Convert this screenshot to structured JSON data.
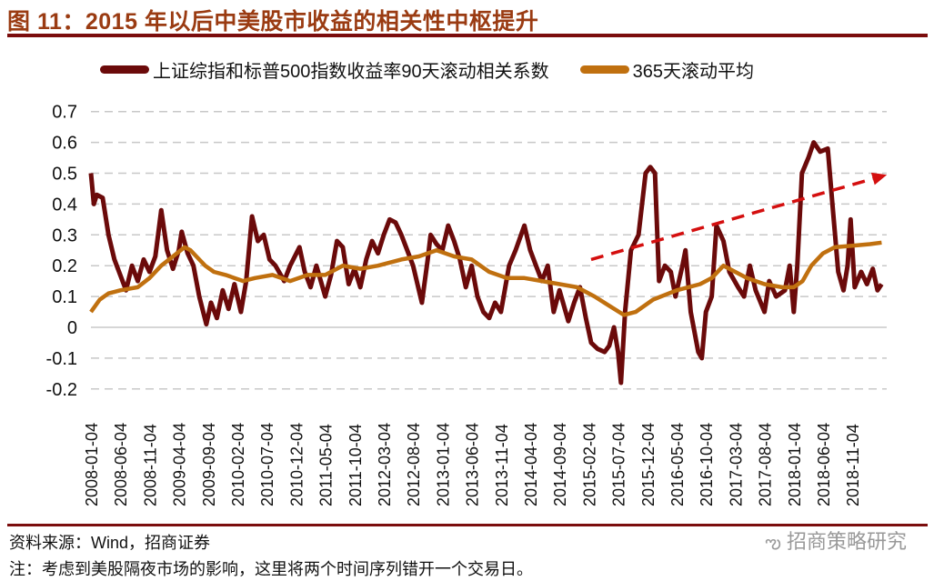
{
  "title": "图 11：2015 年以后中美股市收益的相关性中枢提升",
  "source": "资料来源：Wind，招商证券",
  "note": "注：考虑到美股隔夜市场的影响，这里将两个时间序列错开一个交易日。",
  "watermark": "招商策略研究",
  "colors": {
    "corr": "#6b0a0a",
    "ma": "#c0700f",
    "arrow": "#d40f0f",
    "title": "#9a3b12",
    "rule": "#7b0d0d"
  },
  "chart_data": {
    "type": "line",
    "title": "2015 年以后中美股市收益的相关性中枢提升",
    "x_unit": "months since 2008-01-04",
    "ylim": [
      -0.2,
      0.7
    ],
    "yticks": [
      "-0.2",
      "-0.1",
      "0",
      "0.1",
      "0.2",
      "0.3",
      "0.4",
      "0.5",
      "0.6",
      "0.7"
    ],
    "xticks": [
      "2008-01-04",
      "2008-06-04",
      "2008-11-04",
      "2009-04-04",
      "2009-09-04",
      "2010-02-04",
      "2010-07-04",
      "2010-12-04",
      "2011-05-04",
      "2011-10-04",
      "2012-03-04",
      "2012-08-04",
      "2013-01-04",
      "2013-06-04",
      "2013-11-04",
      "2014-04-04",
      "2014-09-04",
      "2015-02-04",
      "2015-07-04",
      "2015-12-04",
      "2016-05-04",
      "2016-10-04",
      "2017-03-04",
      "2017-08-04",
      "2018-01-04",
      "2018-06-04",
      "2018-11-04"
    ],
    "grid": "horizontal-dashed",
    "legend_position": "top",
    "series": [
      {
        "name": "上证综指和标普500指数收益率90天滚动相关系数",
        "points": [
          [
            0,
            0.5
          ],
          [
            0.5,
            0.4
          ],
          [
            1,
            0.43
          ],
          [
            2,
            0.42
          ],
          [
            3,
            0.3
          ],
          [
            4,
            0.22
          ],
          [
            5,
            0.17
          ],
          [
            6,
            0.12
          ],
          [
            7,
            0.2
          ],
          [
            8,
            0.15
          ],
          [
            9,
            0.22
          ],
          [
            10,
            0.18
          ],
          [
            11,
            0.23
          ],
          [
            12,
            0.38
          ],
          [
            13,
            0.25
          ],
          [
            14,
            0.19
          ],
          [
            15,
            0.25
          ],
          [
            15.5,
            0.31
          ],
          [
            16.5,
            0.24
          ],
          [
            17.5,
            0.2
          ],
          [
            18.5,
            0.1
          ],
          [
            19.7,
            0.01
          ],
          [
            20.5,
            0.08
          ],
          [
            21.5,
            0.03
          ],
          [
            22.5,
            0.12
          ],
          [
            23.5,
            0.06
          ],
          [
            24.5,
            0.14
          ],
          [
            25.6,
            0.05
          ],
          [
            26.5,
            0.15
          ],
          [
            27.5,
            0.36
          ],
          [
            28.5,
            0.28
          ],
          [
            29.5,
            0.3
          ],
          [
            30.5,
            0.22
          ],
          [
            31.5,
            0.2
          ],
          [
            33,
            0.15
          ],
          [
            34,
            0.2
          ],
          [
            35.6,
            0.26
          ],
          [
            36.5,
            0.18
          ],
          [
            37.5,
            0.13
          ],
          [
            38.5,
            0.2
          ],
          [
            40,
            0.1
          ],
          [
            41,
            0.17
          ],
          [
            42,
            0.28
          ],
          [
            43,
            0.26
          ],
          [
            44,
            0.14
          ],
          [
            45,
            0.19
          ],
          [
            46,
            0.13
          ],
          [
            47,
            0.22
          ],
          [
            48,
            0.28
          ],
          [
            49,
            0.24
          ],
          [
            50,
            0.3
          ],
          [
            51,
            0.35
          ],
          [
            52,
            0.34
          ],
          [
            53,
            0.3
          ],
          [
            54,
            0.25
          ],
          [
            55,
            0.2
          ],
          [
            56.5,
            0.08
          ],
          [
            57.5,
            0.22
          ],
          [
            58,
            0.3
          ],
          [
            59,
            0.27
          ],
          [
            60,
            0.25
          ],
          [
            61,
            0.33
          ],
          [
            62,
            0.28
          ],
          [
            63,
            0.22
          ],
          [
            64,
            0.13
          ],
          [
            65,
            0.2
          ],
          [
            66,
            0.1
          ],
          [
            67,
            0.05
          ],
          [
            68,
            0.03
          ],
          [
            69,
            0.08
          ],
          [
            70,
            0.05
          ],
          [
            71.4,
            0.2
          ],
          [
            72.5,
            0.25
          ],
          [
            74,
            0.33
          ],
          [
            75,
            0.25
          ],
          [
            76,
            0.2
          ],
          [
            77,
            0.15
          ],
          [
            78,
            0.2
          ],
          [
            79,
            0.05
          ],
          [
            80,
            0.12
          ],
          [
            81.5,
            0.02
          ],
          [
            82.5,
            0.08
          ],
          [
            83.5,
            0.13
          ],
          [
            84.5,
            0.03
          ],
          [
            85.4,
            -0.05
          ],
          [
            86.5,
            -0.07
          ],
          [
            87.7,
            -0.08
          ],
          [
            88.5,
            -0.06
          ],
          [
            89.3,
            0.0
          ],
          [
            90,
            -0.08
          ],
          [
            90.5,
            -0.18
          ],
          [
            91.2,
            0.05
          ],
          [
            92.2,
            0.25
          ],
          [
            93.5,
            0.3
          ],
          [
            94.7,
            0.5
          ],
          [
            95.5,
            0.52
          ],
          [
            96.3,
            0.5
          ],
          [
            97,
            0.15
          ],
          [
            98,
            0.2
          ],
          [
            99,
            0.18
          ],
          [
            99.8,
            0.1
          ],
          [
            101,
            0.2
          ],
          [
            101.5,
            0.25
          ],
          [
            102.4,
            0.05
          ],
          [
            103.7,
            -0.08
          ],
          [
            104.3,
            -0.1
          ],
          [
            105,
            0.05
          ],
          [
            106,
            0.1
          ],
          [
            106.8,
            0.33
          ],
          [
            108,
            0.28
          ],
          [
            109,
            0.18
          ],
          [
            110.5,
            0.13
          ],
          [
            111.5,
            0.1
          ],
          [
            112.5,
            0.2
          ],
          [
            113.5,
            0.12
          ],
          [
            115,
            0.05
          ],
          [
            115.8,
            0.15
          ],
          [
            117,
            0.1
          ],
          [
            118.5,
            0.12
          ],
          [
            119.3,
            0.2
          ],
          [
            120,
            0.05
          ],
          [
            120.6,
            0.2
          ],
          [
            121.4,
            0.5
          ],
          [
            122.5,
            0.55
          ],
          [
            123.4,
            0.6
          ],
          [
            124.5,
            0.57
          ],
          [
            125.8,
            0.58
          ],
          [
            126.6,
            0.4
          ],
          [
            127.6,
            0.18
          ],
          [
            128.5,
            0.12
          ],
          [
            129.2,
            0.2
          ],
          [
            129.7,
            0.35
          ],
          [
            130.4,
            0.13
          ],
          [
            131.5,
            0.18
          ],
          [
            132.5,
            0.14
          ],
          [
            133.5,
            0.19
          ],
          [
            134.3,
            0.12
          ],
          [
            135,
            0.14
          ]
        ]
      },
      {
        "name": "365天滚动平均",
        "points": [
          [
            0,
            0.05
          ],
          [
            1.5,
            0.09
          ],
          [
            3,
            0.11
          ],
          [
            5,
            0.12
          ],
          [
            8,
            0.13
          ],
          [
            10,
            0.16
          ],
          [
            12,
            0.2
          ],
          [
            14,
            0.23
          ],
          [
            16,
            0.26
          ],
          [
            17,
            0.25
          ],
          [
            18,
            0.23
          ],
          [
            19.5,
            0.2
          ],
          [
            21,
            0.18
          ],
          [
            23,
            0.17
          ],
          [
            26,
            0.15
          ],
          [
            28,
            0.16
          ],
          [
            31,
            0.17
          ],
          [
            34,
            0.15
          ],
          [
            37,
            0.17
          ],
          [
            40,
            0.17
          ],
          [
            43,
            0.2
          ],
          [
            46,
            0.19
          ],
          [
            49,
            0.2
          ],
          [
            53,
            0.22
          ],
          [
            56,
            0.23
          ],
          [
            59,
            0.25
          ],
          [
            62,
            0.23
          ],
          [
            65,
            0.22
          ],
          [
            68,
            0.18
          ],
          [
            71,
            0.16
          ],
          [
            74,
            0.16
          ],
          [
            77,
            0.15
          ],
          [
            80,
            0.14
          ],
          [
            83,
            0.13
          ],
          [
            86,
            0.1
          ],
          [
            88.5,
            0.07
          ],
          [
            91,
            0.04
          ],
          [
            93,
            0.05
          ],
          [
            96,
            0.09
          ],
          [
            100,
            0.12
          ],
          [
            104,
            0.14
          ],
          [
            106,
            0.16
          ],
          [
            108,
            0.2
          ],
          [
            110,
            0.18
          ],
          [
            112,
            0.16
          ],
          [
            115,
            0.14
          ],
          [
            118,
            0.13
          ],
          [
            120,
            0.13
          ],
          [
            121.5,
            0.15
          ],
          [
            123,
            0.2
          ],
          [
            125,
            0.24
          ],
          [
            127,
            0.26
          ],
          [
            130,
            0.265
          ],
          [
            133,
            0.27
          ],
          [
            135,
            0.275
          ]
        ]
      }
    ],
    "annotations": [
      {
        "type": "dashed-arrow",
        "from": [
          85.4,
          0.22
        ],
        "to": [
          135.9,
          0.495
        ]
      }
    ]
  }
}
